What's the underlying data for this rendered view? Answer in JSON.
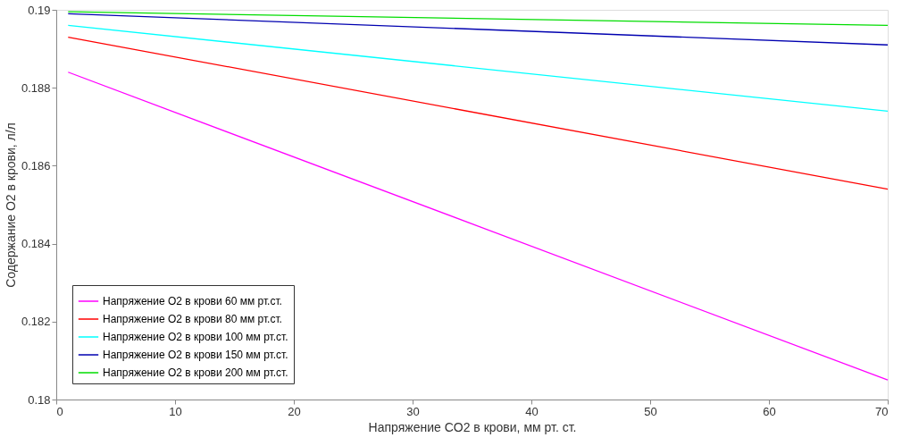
{
  "chart_data": {
    "type": "line",
    "xlabel": "Напряжение CO2 в крови, мм рт. ст.",
    "ylabel": "Содержание O2 в крови, л/л",
    "x": [
      1,
      70
    ],
    "series": [
      {
        "name": "Напряжение O2 в крови 60 мм рт.ст.",
        "color": "#ff00ff",
        "values": [
          0.1884,
          0.1805
        ]
      },
      {
        "name": "Напряжение O2 в крови 80 мм рт.ст.",
        "color": "#ff0000",
        "values": [
          0.1893,
          0.1854
        ]
      },
      {
        "name": "Напряжение O2 в крови 100 мм рт.ст.",
        "color": "#00ffff",
        "values": [
          0.1896,
          0.1874
        ]
      },
      {
        "name": "Напряжение O2 в крови 150 мм рт.ст.",
        "color": "#0000b0",
        "values": [
          0.1899,
          0.1891
        ]
      },
      {
        "name": "Напряжение O2 в крови 200 мм рт.ст.",
        "color": "#00dd00",
        "values": [
          0.18995,
          0.1896
        ]
      }
    ],
    "xlim": [
      0,
      70
    ],
    "xticks": [
      0,
      10,
      20,
      30,
      40,
      50,
      60,
      70
    ],
    "ylim": [
      0.18,
      0.19
    ],
    "yticks": [
      0.18,
      0.182,
      0.184,
      0.186,
      0.188,
      0.19
    ],
    "grid": false,
    "legend": "bottom left",
    "marker": "none",
    "line_style": "solid"
  }
}
